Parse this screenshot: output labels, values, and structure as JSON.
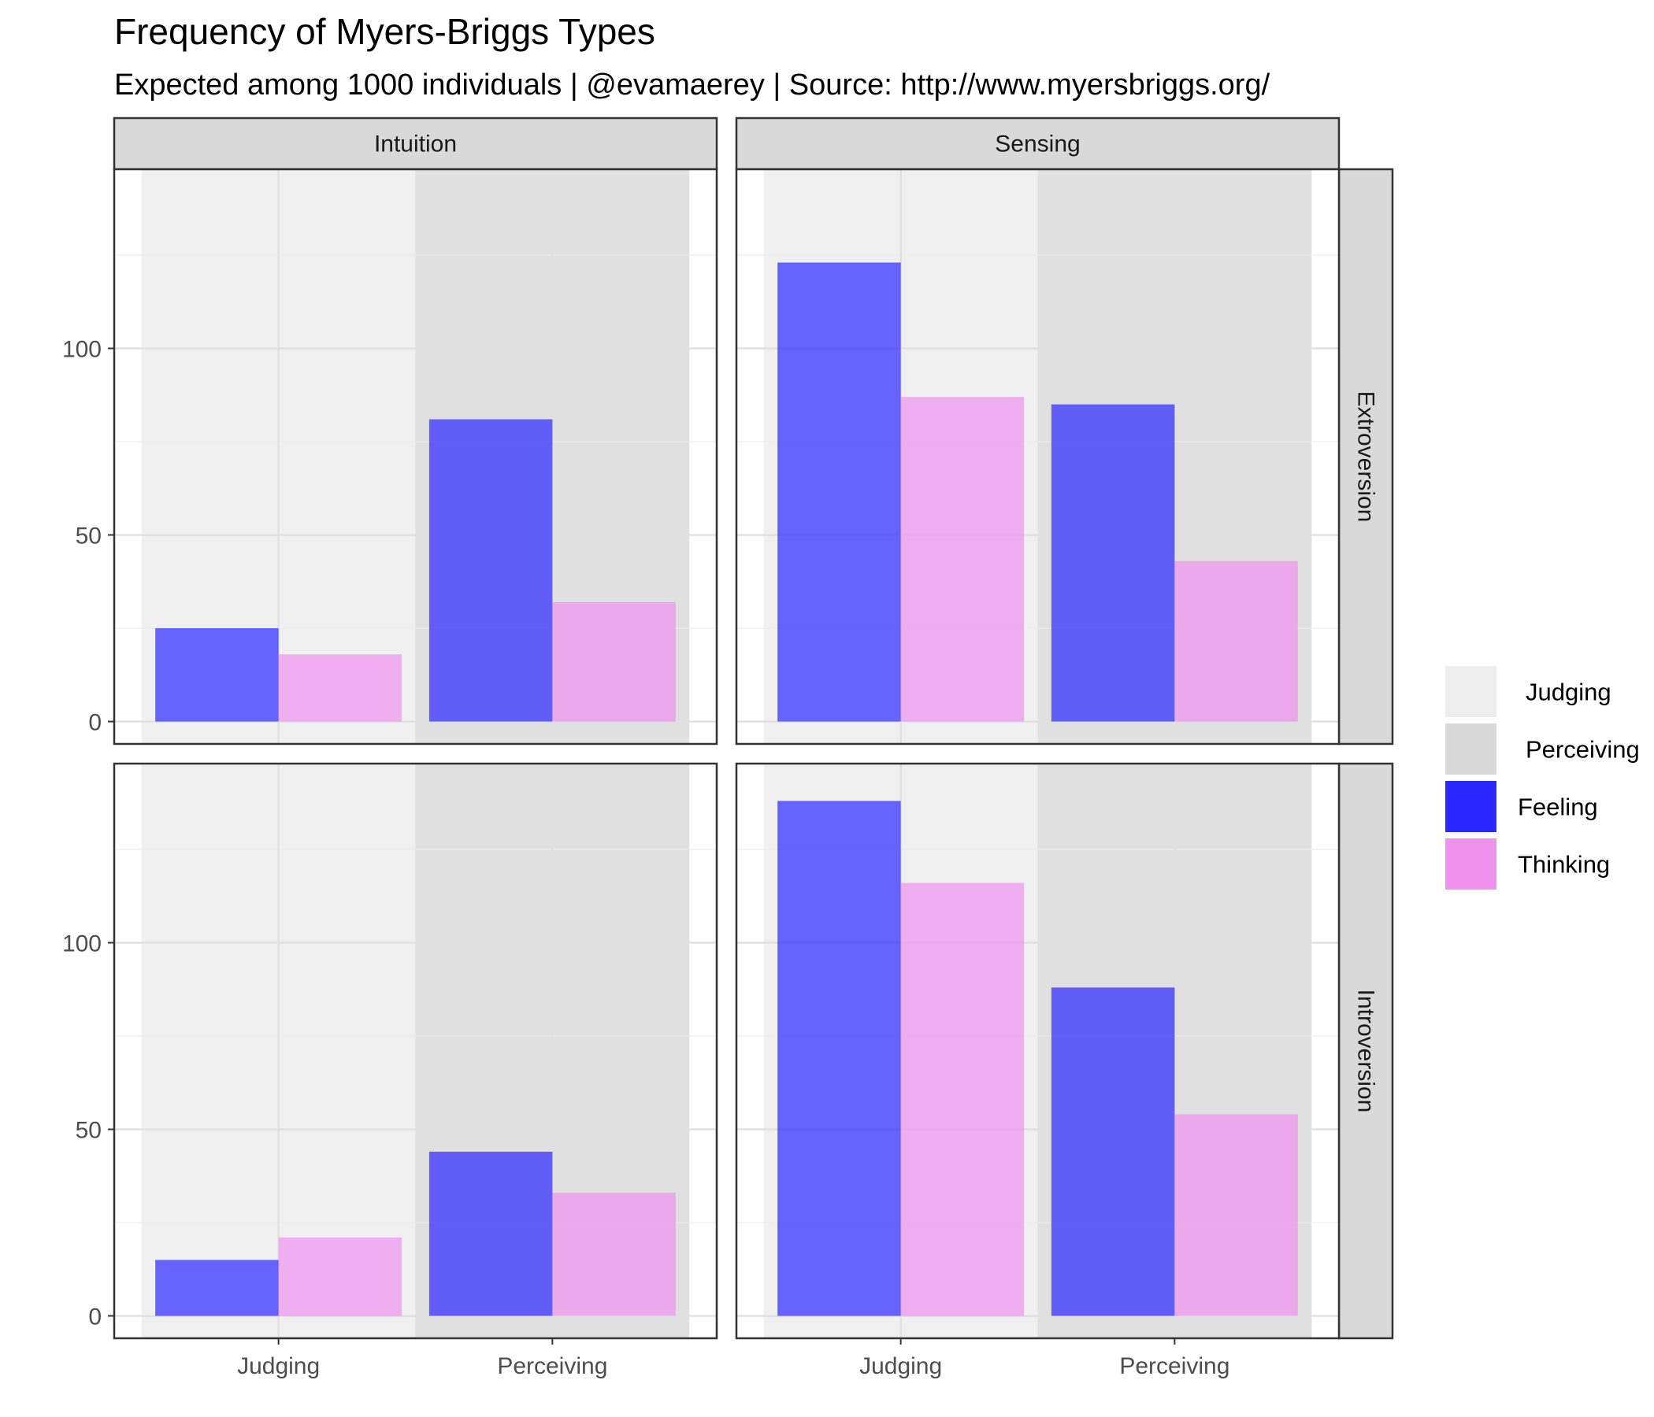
{
  "title": "Frequency of Myers-Briggs Types",
  "subtitle": "Expected among 1000 individuals | @evamaerey | Source: http://www.myersbriggs.org/",
  "chart_data": {
    "type": "bar",
    "facet_cols": [
      "Intuition",
      "Sensing"
    ],
    "facet_rows": [
      "Extroversion",
      "Introversion"
    ],
    "categories": [
      "Judging",
      "Perceiving"
    ],
    "background_fills": {
      "Judging": "#e8e8e8",
      "Perceiving": "#d0d0d0"
    },
    "series_colors": {
      "Feeling": "#2a27ff",
      "Thinking": "#ee92ee"
    },
    "ylim": [
      -6,
      148
    ],
    "y_ticks": [
      0,
      50,
      100
    ],
    "panels": [
      {
        "row": "Extroversion",
        "col": "Intuition",
        "series": [
          {
            "name": "Feeling",
            "values": [
              25,
              81
            ]
          },
          {
            "name": "Thinking",
            "values": [
              18,
              32
            ]
          }
        ]
      },
      {
        "row": "Extroversion",
        "col": "Sensing",
        "series": [
          {
            "name": "Feeling",
            "values": [
              123,
              85
            ]
          },
          {
            "name": "Thinking",
            "values": [
              87,
              43
            ]
          }
        ]
      },
      {
        "row": "Introversion",
        "col": "Intuition",
        "series": [
          {
            "name": "Feeling",
            "values": [
              15,
              44
            ]
          },
          {
            "name": "Thinking",
            "values": [
              21,
              33
            ]
          }
        ]
      },
      {
        "row": "Introversion",
        "col": "Sensing",
        "series": [
          {
            "name": "Feeling",
            "values": [
              138,
              88
            ]
          },
          {
            "name": "Thinking",
            "values": [
              116,
              54
            ]
          }
        ]
      }
    ],
    "legend": [
      {
        "label": "Judging",
        "color": "#e8e8e8"
      },
      {
        "label": "Perceiving",
        "color": "#d0d0d0"
      },
      {
        "label": "Feeling",
        "color": "#2a27ff"
      },
      {
        "label": "Thinking",
        "color": "#ee92ee"
      }
    ],
    "legend_position": "right",
    "grid": true
  }
}
